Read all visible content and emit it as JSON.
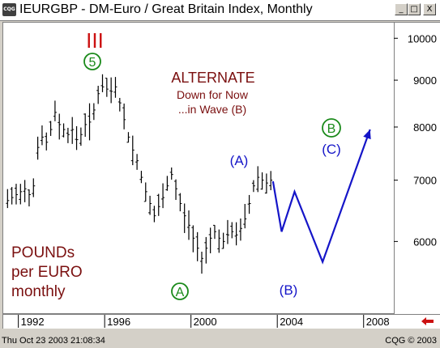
{
  "window": {
    "title": "IEURGBP - DM-Euro / Great Britain Index, Monthly",
    "app_icon_label": "CQG",
    "minimize_label": "_",
    "maximize_label": "□",
    "close_label": "X"
  },
  "annotations": {
    "wave_iii": "III",
    "wave_5": "5",
    "wave_a_circle": "A",
    "wave_b_circle": "B",
    "wave_a_paren": "(A)",
    "wave_b_paren": "(B)",
    "wave_c_paren": "(C)",
    "alternate_title": "ALTERNATE",
    "alternate_line1": "Down for Now",
    "alternate_line2": "...in Wave (B)",
    "pounds_line1": "POUNDs",
    "pounds_line2": "per EURO",
    "pounds_line3": "monthly"
  },
  "colors": {
    "price_bars": "#000000",
    "wave_red": "#b00000",
    "alternate_text": "#7a0f0f",
    "wave_green": "#1a8a1a",
    "projection_blue": "#1515c8",
    "scroll_arrow": "#cc1111"
  },
  "status": {
    "timestamp": "Thu Oct 23 2003 21:08:34",
    "copyright": "CQG © 2003"
  },
  "chart_data": {
    "type": "bar",
    "title": "IEURGBP - DM-Euro / Great Britain Index, Monthly",
    "x_tick_labels": [
      "1992",
      "1996",
      "2000",
      "2004",
      "2008"
    ],
    "y_tick_labels": [
      "10000",
      "9000",
      "8000",
      "7000",
      "6000"
    ],
    "y_ticks": [
      10000,
      9000,
      8000,
      7000,
      6000
    ],
    "x_ticks": [
      1992,
      1996,
      2000,
      2004,
      2008
    ],
    "x_range": [
      1991.3,
      2009.4
    ],
    "y_range": [
      5000,
      10400
    ],
    "y_scale": "log",
    "grid": false,
    "series": [
      {
        "values": [
          [
            1991.5,
            6650
          ],
          [
            1991.7,
            6700
          ],
          [
            1991.9,
            6750
          ],
          [
            1992.1,
            6800
          ],
          [
            1992.3,
            6850
          ],
          [
            1992.5,
            6750
          ],
          [
            1992.7,
            6900
          ],
          [
            1992.9,
            7600
          ],
          [
            1993.1,
            7800
          ],
          [
            1993.3,
            7700
          ],
          [
            1993.5,
            7950
          ],
          [
            1993.7,
            8300
          ],
          [
            1993.9,
            8050
          ],
          [
            1994.1,
            7950
          ],
          [
            1994.3,
            7850
          ],
          [
            1994.5,
            7950
          ],
          [
            1994.7,
            7750
          ],
          [
            1994.9,
            7850
          ],
          [
            1995.1,
            8050
          ],
          [
            1995.3,
            8100
          ],
          [
            1995.5,
            8350
          ],
          [
            1995.7,
            8700
          ],
          [
            1995.9,
            8850
          ],
          [
            1996.1,
            8800
          ],
          [
            1996.3,
            8750
          ],
          [
            1996.5,
            8850
          ],
          [
            1996.7,
            8500
          ],
          [
            1996.9,
            8150
          ],
          [
            1997.1,
            7800
          ],
          [
            1997.3,
            7550
          ],
          [
            1997.5,
            7350
          ],
          [
            1997.7,
            7050
          ],
          [
            1997.9,
            6800
          ],
          [
            1998.1,
            6600
          ],
          [
            1998.3,
            6400
          ],
          [
            1998.5,
            6550
          ],
          [
            1998.7,
            6700
          ],
          [
            1998.9,
            6900
          ],
          [
            1999.1,
            7100
          ],
          [
            1999.3,
            6850
          ],
          [
            1999.5,
            6600
          ],
          [
            1999.7,
            6400
          ],
          [
            1999.9,
            6250
          ],
          [
            2000.1,
            6050
          ],
          [
            2000.3,
            5900
          ],
          [
            2000.5,
            5750
          ],
          [
            2000.7,
            5900
          ],
          [
            2000.9,
            6050
          ],
          [
            2001.1,
            6150
          ],
          [
            2001.3,
            6050
          ],
          [
            2001.5,
            6000
          ],
          [
            2001.7,
            6100
          ],
          [
            2001.9,
            6150
          ],
          [
            2002.1,
            6100
          ],
          [
            2002.3,
            6200
          ],
          [
            2002.5,
            6350
          ],
          [
            2002.7,
            6600
          ],
          [
            2002.9,
            6900
          ],
          [
            2003.1,
            7050
          ],
          [
            2003.3,
            7000
          ],
          [
            2003.5,
            6950
          ],
          [
            2003.7,
            7000
          ]
        ]
      }
    ],
    "projection_path": [
      [
        2003.8,
        6980
      ],
      [
        2004.2,
        6150
      ],
      [
        2004.8,
        6800
      ],
      [
        2006.1,
        5700
      ],
      [
        2008.3,
        7950
      ]
    ]
  }
}
